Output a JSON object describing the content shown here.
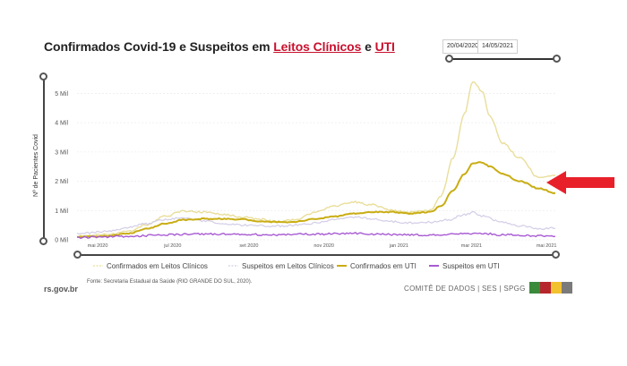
{
  "header": {
    "title_part1": "Confirmados Covid-19 e Suspeitos em ",
    "title_link1": "Leitos Clínicos",
    "title_and": " e ",
    "title_link2": "UTI"
  },
  "date_range": {
    "start": "20/04/2020",
    "end": "14/05/2021"
  },
  "footer": {
    "logo_text": "rs.gov.br",
    "source": "Fonte: Secretaria Estadual da Saúde (RIO GRANDE DO SUL, 2020).",
    "committee": "COMITÊ DE DADOS | SES | SPGG"
  },
  "colors": {
    "confirmados_clinicos": "#e9de9b",
    "suspeitos_clinicos": "#d3cde7",
    "confirmados_uti": "#c9ad14",
    "suspeitos_uti": "#a85bd2",
    "arrow": "#e8202a",
    "flag": [
      "#3a8a3a",
      "#b7262d",
      "#f2c12e",
      "#7a7a7a"
    ]
  },
  "chart_data": {
    "type": "line",
    "ylabel": "Nº de Pacientes Covid",
    "xlabel": "",
    "ylim": [
      0,
      5.5
    ],
    "y_ticks": [
      "0 Mil",
      "1 Mil",
      "2 Mil",
      "3 Mil",
      "4 Mil",
      "5 Mil"
    ],
    "x_ticks": [
      "mai 2020",
      "jul 2020",
      "set 2020",
      "nov 2020",
      "jan 2021",
      "mar 2021",
      "mai 2021"
    ],
    "legend_position": "bottom",
    "grid": true,
    "series": [
      {
        "name": "Confirmados em Leitos Clínicos",
        "style": "dashed",
        "x": [
          "2020-04-20",
          "2020-05-15",
          "2020-06-01",
          "2020-06-15",
          "2020-07-01",
          "2020-07-15",
          "2020-08-01",
          "2020-08-15",
          "2020-09-01",
          "2020-09-15",
          "2020-10-01",
          "2020-10-15",
          "2020-11-01",
          "2020-11-15",
          "2020-12-01",
          "2020-12-15",
          "2021-01-01",
          "2021-01-15",
          "2021-02-01",
          "2021-02-10",
          "2021-02-20",
          "2021-03-01",
          "2021-03-08",
          "2021-03-15",
          "2021-03-22",
          "2021-04-01",
          "2021-04-15",
          "2021-05-01",
          "2021-05-14"
        ],
        "values": [
          0.12,
          0.18,
          0.3,
          0.5,
          0.8,
          0.98,
          0.95,
          0.88,
          0.78,
          0.7,
          0.62,
          0.7,
          0.95,
          1.15,
          1.3,
          1.2,
          1.0,
          0.95,
          1.0,
          1.5,
          2.8,
          4.3,
          5.4,
          5.1,
          4.2,
          3.3,
          2.8,
          2.1,
          2.2
        ]
      },
      {
        "name": "Suspeitos em Leitos Clínicos",
        "style": "dashed",
        "x": [
          "2020-04-20",
          "2020-05-15",
          "2020-06-01",
          "2020-06-15",
          "2020-07-01",
          "2020-07-15",
          "2020-08-01",
          "2020-08-15",
          "2020-09-01",
          "2020-09-15",
          "2020-10-01",
          "2020-10-15",
          "2020-11-01",
          "2020-11-15",
          "2020-12-01",
          "2020-12-15",
          "2021-01-01",
          "2021-01-15",
          "2021-02-01",
          "2021-02-15",
          "2021-03-01",
          "2021-03-08",
          "2021-03-15",
          "2021-04-01",
          "2021-04-15",
          "2021-05-01",
          "2021-05-14"
        ],
        "values": [
          0.2,
          0.3,
          0.42,
          0.55,
          0.7,
          0.75,
          0.65,
          0.55,
          0.5,
          0.48,
          0.47,
          0.5,
          0.58,
          0.7,
          0.78,
          0.72,
          0.62,
          0.58,
          0.6,
          0.68,
          0.85,
          0.93,
          0.82,
          0.6,
          0.48,
          0.38,
          0.4
        ]
      },
      {
        "name": "Confirmados em UTI",
        "style": "solid",
        "x": [
          "2020-04-20",
          "2020-05-15",
          "2020-06-01",
          "2020-06-15",
          "2020-07-01",
          "2020-07-15",
          "2020-08-01",
          "2020-08-15",
          "2020-09-01",
          "2020-09-15",
          "2020-10-01",
          "2020-10-15",
          "2020-11-01",
          "2020-11-15",
          "2020-12-01",
          "2020-12-15",
          "2021-01-01",
          "2021-01-15",
          "2021-02-01",
          "2021-02-10",
          "2021-02-20",
          "2021-03-01",
          "2021-03-08",
          "2021-03-15",
          "2021-03-22",
          "2021-04-01",
          "2021-04-15",
          "2021-05-01",
          "2021-05-14"
        ],
        "values": [
          0.1,
          0.13,
          0.22,
          0.38,
          0.55,
          0.68,
          0.72,
          0.72,
          0.7,
          0.64,
          0.6,
          0.62,
          0.72,
          0.8,
          0.9,
          0.95,
          0.95,
          0.9,
          0.95,
          1.15,
          1.7,
          2.25,
          2.6,
          2.65,
          2.5,
          2.25,
          2.0,
          1.75,
          1.6
        ]
      },
      {
        "name": "Suspeitos em UTI",
        "style": "solid",
        "x": [
          "2020-04-20",
          "2020-06-01",
          "2020-07-01",
          "2020-08-01",
          "2020-09-01",
          "2020-10-01",
          "2020-11-01",
          "2020-12-01",
          "2021-01-01",
          "2021-02-01",
          "2021-03-01",
          "2021-03-15",
          "2021-04-01",
          "2021-05-01",
          "2021-05-14"
        ],
        "values": [
          0.08,
          0.12,
          0.17,
          0.2,
          0.18,
          0.17,
          0.2,
          0.22,
          0.18,
          0.17,
          0.2,
          0.22,
          0.17,
          0.13,
          0.12
        ]
      }
    ]
  }
}
